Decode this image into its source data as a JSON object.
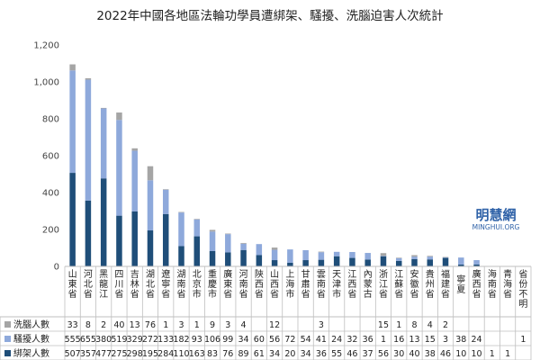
{
  "chart_data": {
    "type": "bar",
    "stacked": true,
    "title": "2022年中國各地區法輪功學員遭綁架、騷擾、洗腦迫害人次統計",
    "categories": [
      "山東省",
      "河北省",
      "黑龍江",
      "四川省",
      "吉林省",
      "湖北省",
      "遼寧省",
      "湖南省",
      "北京市",
      "重慶市",
      "廣東省",
      "河南省",
      "陝西省",
      "山西省",
      "上海市",
      "甘肅省",
      "雲南省",
      "天津市",
      "江西省",
      "內蒙古",
      "浙江省",
      "江蘇省",
      "安徽省",
      "貴州省",
      "福建省",
      "寧夏",
      "廣西省",
      "海南省",
      "青海省",
      "省份不明"
    ],
    "series": [
      {
        "name": "綁架人數",
        "color": "#1f4e79",
        "values": [
          507,
          357,
          477,
          275,
          298,
          195,
          284,
          110,
          163,
          83,
          76,
          89,
          61,
          34,
          20,
          34,
          36,
          55,
          46,
          37,
          56,
          30,
          40,
          38,
          46,
          10,
          10,
          1,
          1,
          0
        ]
      },
      {
        "name": "騷擾人數",
        "color": "#8ea9db",
        "values": [
          555,
          655,
          380,
          519,
          329,
          272,
          133,
          182,
          93,
          106,
          99,
          34,
          60,
          56,
          72,
          54,
          41,
          24,
          32,
          36,
          1,
          16,
          13,
          15,
          3,
          38,
          24,
          0,
          0,
          1
        ]
      },
      {
        "name": "洗腦人數",
        "color": "#a5a5a5",
        "values": [
          33,
          8,
          2,
          40,
          13,
          76,
          1,
          3,
          1,
          9,
          3,
          4,
          0,
          12,
          0,
          0,
          3,
          0,
          0,
          0,
          15,
          1,
          8,
          4,
          2,
          0,
          0,
          0,
          0,
          0
        ]
      }
    ],
    "table_rows": [
      {
        "label": "洗腦人數",
        "cells": [
          "33",
          "8",
          "2",
          "40",
          "13",
          "76",
          "1",
          "3",
          "1",
          "9",
          "3",
          "4",
          "",
          "12",
          "",
          "",
          "3",
          "",
          "",
          "",
          "15",
          "1",
          "8",
          "4",
          "2",
          "",
          "",
          "",
          "",
          ""
        ]
      },
      {
        "label": "騷擾人數",
        "cells": [
          "555",
          "655",
          "380",
          "519",
          "329",
          "272",
          "133",
          "182",
          "93",
          "106",
          "99",
          "34",
          "60",
          "56",
          "72",
          "54",
          "41",
          "24",
          "32",
          "36",
          "1",
          "16",
          "13",
          "15",
          "3",
          "38",
          "24",
          "",
          "",
          "1"
        ]
      },
      {
        "label": "綁架人數",
        "cells": [
          "507",
          "357",
          "477",
          "275",
          "298",
          "195",
          "284",
          "110",
          "163",
          "83",
          "76",
          "89",
          "61",
          "34",
          "20",
          "34",
          "36",
          "55",
          "46",
          "37",
          "56",
          "30",
          "40",
          "38",
          "46",
          "10",
          "10",
          "1",
          "1",
          ""
        ]
      }
    ],
    "ylim": [
      0,
      1200
    ],
    "yticks": [
      0,
      200,
      400,
      600,
      800,
      1000,
      1200
    ],
    "grid": false,
    "legend": "in-table"
  },
  "brand": {
    "name": "明慧網",
    "sub": "MINGHUI.ORG"
  }
}
